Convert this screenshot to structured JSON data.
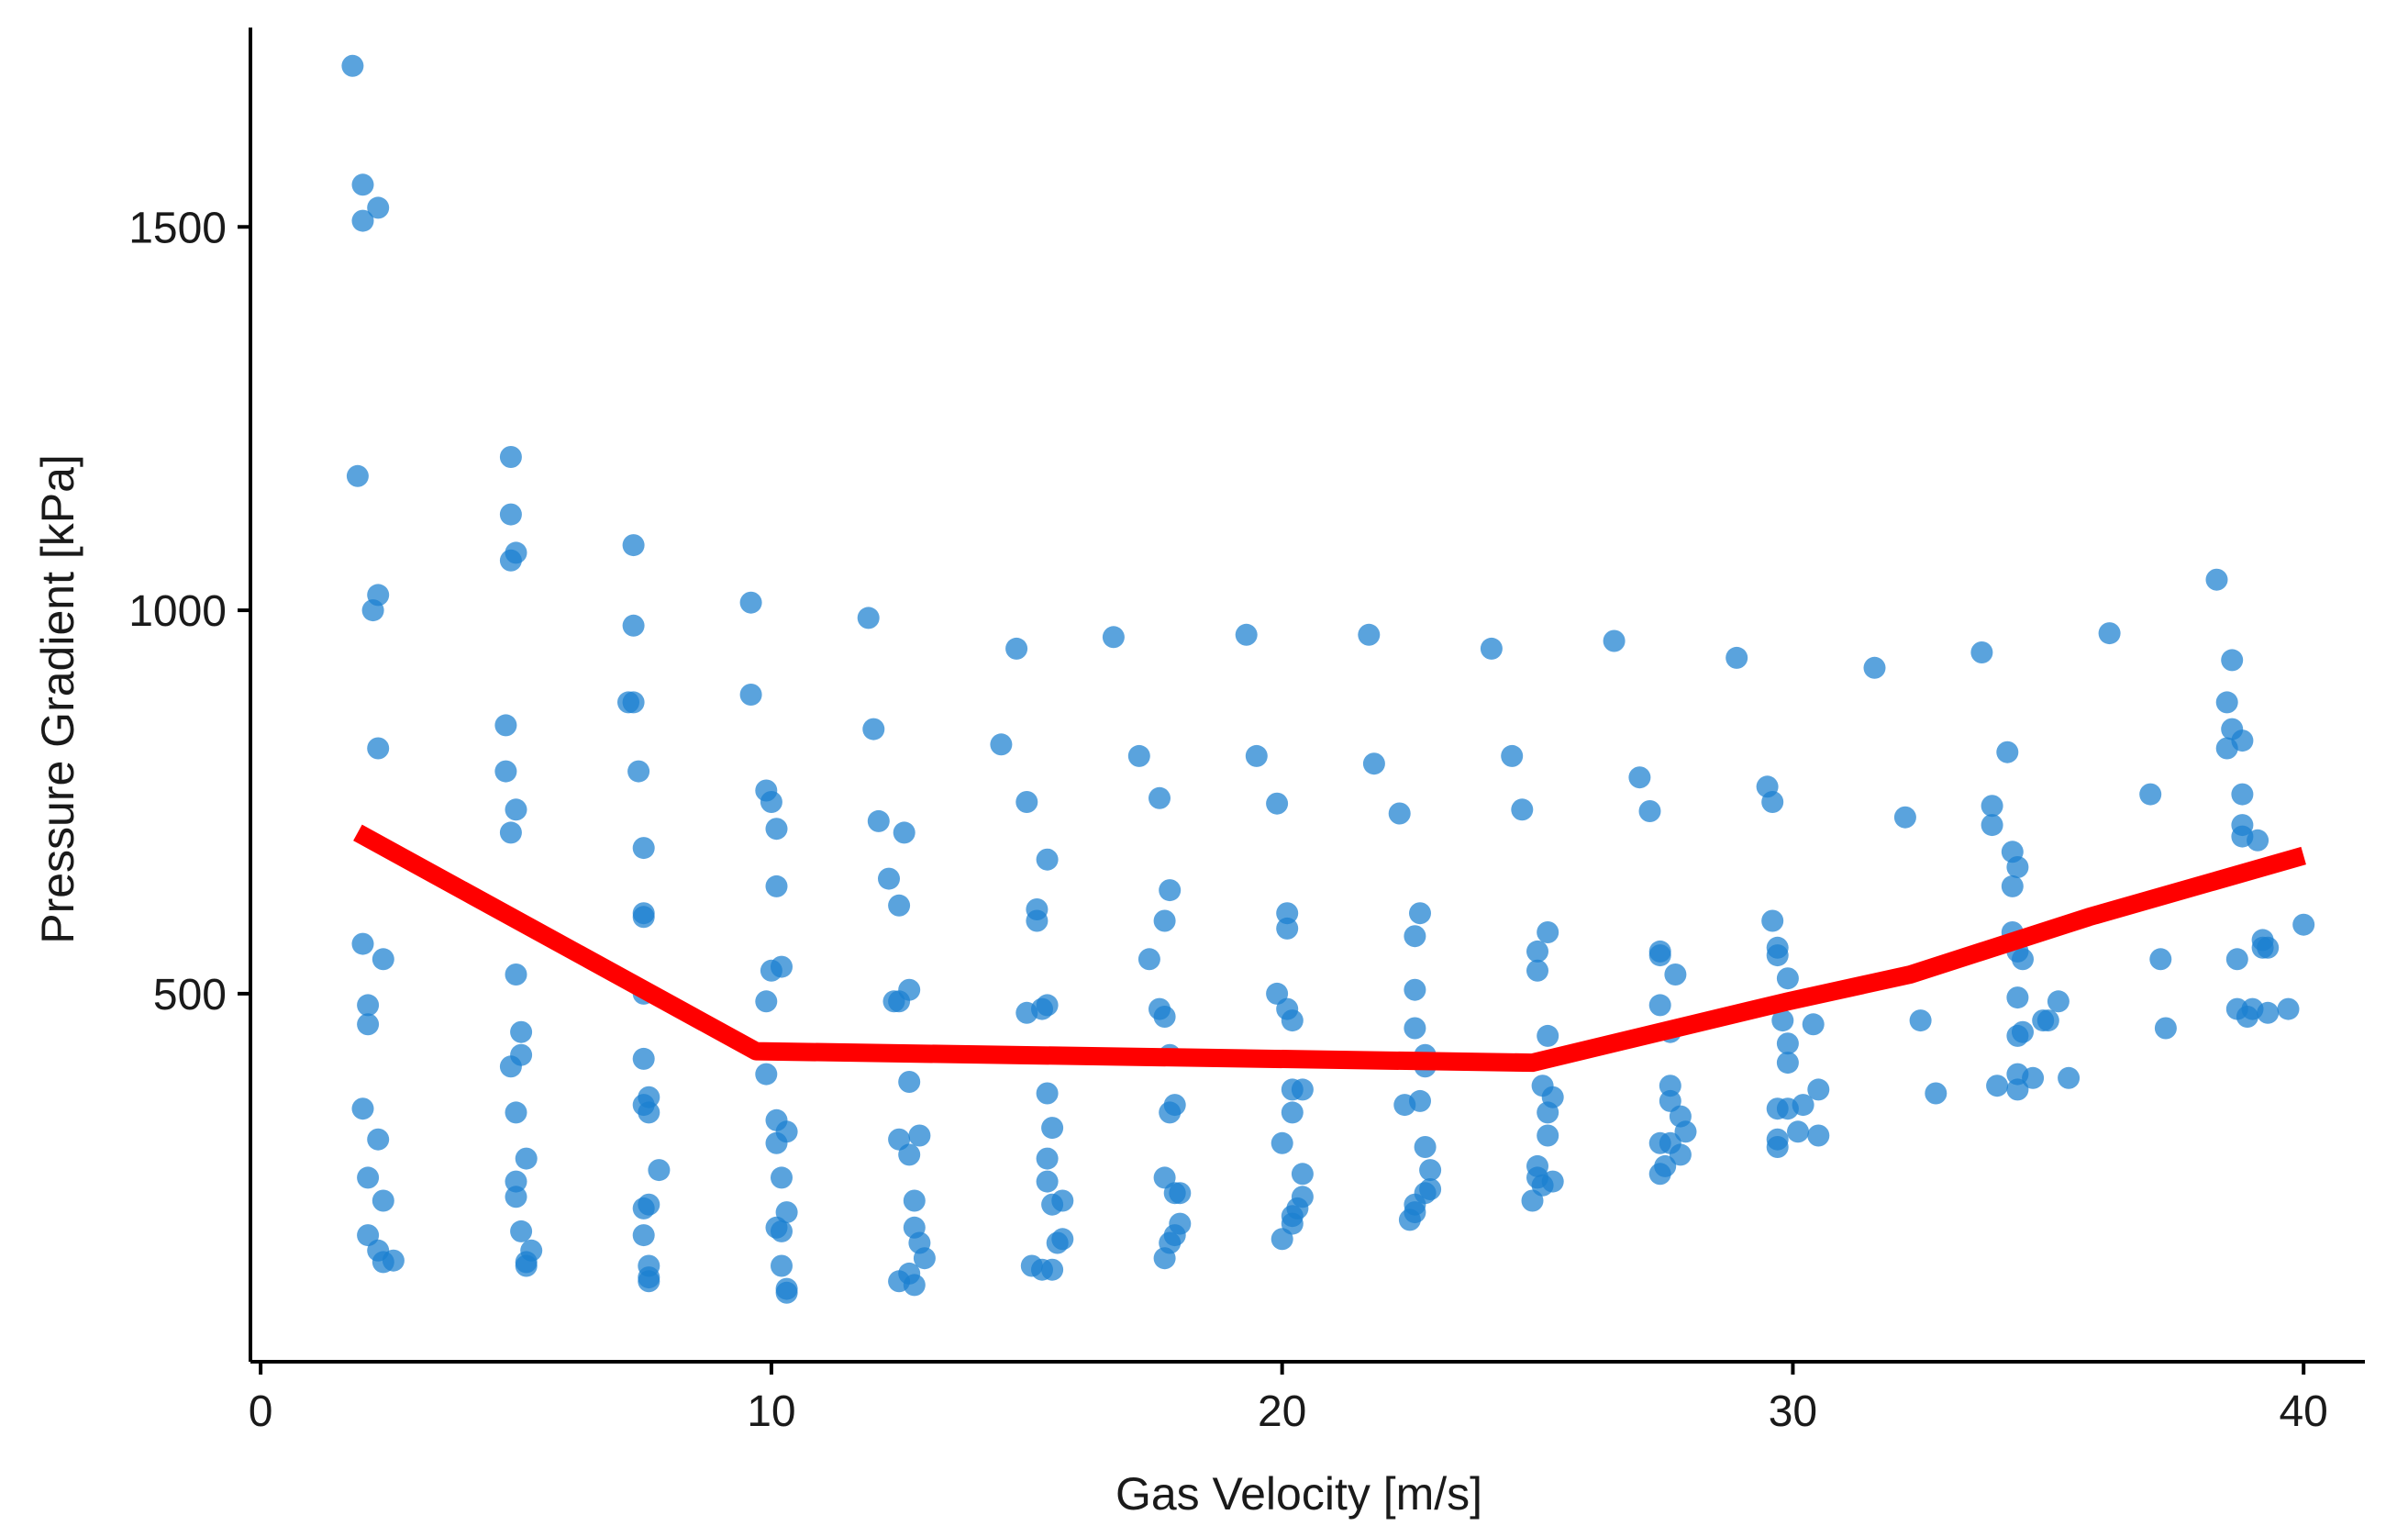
{
  "chart_data": {
    "type": "scatter",
    "title": "",
    "xlabel": "Gas Velocity [m/s]",
    "ylabel": "Pressure Gradient [kPa]",
    "xlim": [
      -0.2,
      41.2
    ],
    "ylim": [
      20,
      1760
    ],
    "xticks": [
      0,
      10,
      20,
      30,
      40
    ],
    "xtick_labels": [
      "0",
      "10",
      "20",
      "30",
      "40"
    ],
    "yticks": [
      500,
      1000,
      1500
    ],
    "ytick_labels": [
      "500",
      "1000",
      "1500"
    ],
    "grid": false,
    "legend": null,
    "colors": {
      "points": "#1a80d0",
      "trend": "#ff0000",
      "axis": "#000000"
    },
    "series": [
      {
        "name": "measurements",
        "kind": "scatter",
        "points": [
          [
            1.8,
            1710
          ],
          [
            2.0,
            1555
          ],
          [
            2.3,
            1525
          ],
          [
            2.0,
            1508
          ],
          [
            1.9,
            1175
          ],
          [
            2.3,
            1020
          ],
          [
            2.2,
            1000
          ],
          [
            2.3,
            820
          ],
          [
            2.0,
            565
          ],
          [
            2.4,
            545
          ],
          [
            2.1,
            485
          ],
          [
            2.1,
            460
          ],
          [
            2.0,
            350
          ],
          [
            2.3,
            310
          ],
          [
            2.1,
            260
          ],
          [
            2.4,
            230
          ],
          [
            2.1,
            185
          ],
          [
            2.3,
            165
          ],
          [
            2.4,
            150
          ],
          [
            2.6,
            152
          ],
          [
            4.9,
            1200
          ],
          [
            4.9,
            1125
          ],
          [
            5.0,
            1075
          ],
          [
            4.9,
            1065
          ],
          [
            4.8,
            850
          ],
          [
            4.8,
            790
          ],
          [
            5.0,
            740
          ],
          [
            4.9,
            710
          ],
          [
            5.0,
            525
          ],
          [
            5.1,
            450
          ],
          [
            5.1,
            420
          ],
          [
            4.9,
            405
          ],
          [
            5.0,
            345
          ],
          [
            5.2,
            285
          ],
          [
            5.0,
            255
          ],
          [
            5.0,
            235
          ],
          [
            5.1,
            190
          ],
          [
            5.3,
            165
          ],
          [
            5.2,
            145
          ],
          [
            5.2,
            150
          ],
          [
            7.3,
            1085
          ],
          [
            7.3,
            980
          ],
          [
            7.2,
            880
          ],
          [
            7.3,
            880
          ],
          [
            7.4,
            790
          ],
          [
            7.5,
            690
          ],
          [
            7.5,
            605
          ],
          [
            7.5,
            600
          ],
          [
            7.5,
            500
          ],
          [
            7.5,
            415
          ],
          [
            7.6,
            365
          ],
          [
            7.5,
            355
          ],
          [
            7.6,
            345
          ],
          [
            7.8,
            270
          ],
          [
            7.6,
            225
          ],
          [
            7.5,
            220
          ],
          [
            7.5,
            185
          ],
          [
            7.6,
            145
          ],
          [
            7.6,
            130
          ],
          [
            7.6,
            125
          ],
          [
            9.6,
            1010
          ],
          [
            9.6,
            890
          ],
          [
            9.9,
            765
          ],
          [
            10.0,
            750
          ],
          [
            10.1,
            715
          ],
          [
            10.1,
            640
          ],
          [
            10.0,
            530
          ],
          [
            10.2,
            535
          ],
          [
            9.9,
            490
          ],
          [
            9.9,
            395
          ],
          [
            10.1,
            335
          ],
          [
            10.3,
            320
          ],
          [
            10.1,
            305
          ],
          [
            10.2,
            260
          ],
          [
            10.3,
            215
          ],
          [
            10.1,
            195
          ],
          [
            10.2,
            190
          ],
          [
            10.2,
            145
          ],
          [
            10.3,
            115
          ],
          [
            10.3,
            110
          ],
          [
            11.9,
            990
          ],
          [
            12.0,
            845
          ],
          [
            12.1,
            725
          ],
          [
            12.6,
            710
          ],
          [
            12.3,
            650
          ],
          [
            12.5,
            615
          ],
          [
            12.7,
            505
          ],
          [
            12.4,
            490
          ],
          [
            12.5,
            490
          ],
          [
            12.7,
            385
          ],
          [
            12.5,
            310
          ],
          [
            12.9,
            315
          ],
          [
            12.7,
            290
          ],
          [
            12.8,
            230
          ],
          [
            12.8,
            195
          ],
          [
            12.9,
            175
          ],
          [
            12.7,
            135
          ],
          [
            12.5,
            125
          ],
          [
            12.8,
            120
          ],
          [
            13.0,
            155
          ],
          [
            14.5,
            825
          ],
          [
            14.8,
            950
          ],
          [
            15.0,
            750
          ],
          [
            15.2,
            610
          ],
          [
            15.2,
            595
          ],
          [
            15.4,
            675
          ],
          [
            15.4,
            485
          ],
          [
            15.3,
            480
          ],
          [
            15.0,
            475
          ],
          [
            15.4,
            370
          ],
          [
            15.5,
            325
          ],
          [
            15.4,
            285
          ],
          [
            15.4,
            255
          ],
          [
            15.5,
            225
          ],
          [
            15.7,
            230
          ],
          [
            15.6,
            175
          ],
          [
            15.7,
            180
          ],
          [
            15.1,
            145
          ],
          [
            15.3,
            140
          ],
          [
            15.5,
            140
          ],
          [
            16.7,
            965
          ],
          [
            17.2,
            810
          ],
          [
            17.6,
            755
          ],
          [
            17.8,
            635
          ],
          [
            17.7,
            595
          ],
          [
            17.4,
            545
          ],
          [
            17.6,
            480
          ],
          [
            17.7,
            470
          ],
          [
            17.8,
            420
          ],
          [
            17.9,
            355
          ],
          [
            17.8,
            345
          ],
          [
            17.7,
            260
          ],
          [
            17.9,
            240
          ],
          [
            18.0,
            240
          ],
          [
            18.0,
            200
          ],
          [
            17.9,
            185
          ],
          [
            17.8,
            175
          ],
          [
            17.7,
            155
          ],
          [
            19.3,
            968
          ],
          [
            19.5,
            810
          ],
          [
            19.9,
            748
          ],
          [
            20.1,
            605
          ],
          [
            20.1,
            585
          ],
          [
            19.9,
            500
          ],
          [
            20.1,
            480
          ],
          [
            20.2,
            465
          ],
          [
            20.2,
            375
          ],
          [
            20.4,
            375
          ],
          [
            20.2,
            345
          ],
          [
            20.0,
            305
          ],
          [
            20.4,
            265
          ],
          [
            20.4,
            235
          ],
          [
            20.3,
            220
          ],
          [
            20.2,
            210
          ],
          [
            20.2,
            200
          ],
          [
            20.0,
            180
          ],
          [
            21.7,
            968
          ],
          [
            21.8,
            800
          ],
          [
            22.3,
            735
          ],
          [
            22.7,
            605
          ],
          [
            22.6,
            575
          ],
          [
            22.6,
            505
          ],
          [
            22.6,
            455
          ],
          [
            22.8,
            420
          ],
          [
            22.8,
            405
          ],
          [
            22.4,
            355
          ],
          [
            22.7,
            360
          ],
          [
            22.8,
            300
          ],
          [
            22.9,
            270
          ],
          [
            22.9,
            245
          ],
          [
            22.8,
            240
          ],
          [
            22.6,
            225
          ],
          [
            22.6,
            215
          ],
          [
            22.5,
            205
          ],
          [
            24.1,
            950
          ],
          [
            24.5,
            810
          ],
          [
            24.7,
            740
          ],
          [
            25.0,
            555
          ],
          [
            25.0,
            530
          ],
          [
            25.2,
            580
          ],
          [
            25.2,
            445
          ],
          [
            25.1,
            380
          ],
          [
            25.3,
            365
          ],
          [
            25.2,
            345
          ],
          [
            25.2,
            315
          ],
          [
            25.0,
            275
          ],
          [
            25.0,
            260
          ],
          [
            25.3,
            255
          ],
          [
            25.1,
            250
          ],
          [
            24.9,
            230
          ],
          [
            26.5,
            960
          ],
          [
            27.0,
            782
          ],
          [
            27.2,
            738
          ],
          [
            27.4,
            555
          ],
          [
            27.4,
            550
          ],
          [
            27.4,
            485
          ],
          [
            27.7,
            525
          ],
          [
            27.6,
            450
          ],
          [
            27.6,
            380
          ],
          [
            27.6,
            360
          ],
          [
            27.8,
            340
          ],
          [
            27.9,
            320
          ],
          [
            27.4,
            305
          ],
          [
            27.6,
            305
          ],
          [
            27.5,
            275
          ],
          [
            27.8,
            290
          ],
          [
            27.4,
            265
          ],
          [
            28.9,
            938
          ],
          [
            29.5,
            770
          ],
          [
            29.6,
            750
          ],
          [
            29.6,
            595
          ],
          [
            29.7,
            560
          ],
          [
            29.7,
            550
          ],
          [
            29.9,
            520
          ],
          [
            29.8,
            465
          ],
          [
            29.9,
            435
          ],
          [
            29.9,
            410
          ],
          [
            30.2,
            355
          ],
          [
            30.5,
            375
          ],
          [
            30.1,
            320
          ],
          [
            30.5,
            315
          ],
          [
            29.7,
            350
          ],
          [
            29.9,
            350
          ],
          [
            29.7,
            310
          ],
          [
            29.7,
            300
          ],
          [
            30.4,
            460
          ],
          [
            31.6,
            925
          ],
          [
            32.2,
            730
          ],
          [
            32.5,
            465
          ],
          [
            32.8,
            370
          ],
          [
            33.7,
            945
          ],
          [
            34.2,
            815
          ],
          [
            33.9,
            745
          ],
          [
            33.9,
            720
          ],
          [
            34.3,
            685
          ],
          [
            34.4,
            665
          ],
          [
            34.3,
            640
          ],
          [
            34.3,
            580
          ],
          [
            34.5,
            545
          ],
          [
            34.4,
            555
          ],
          [
            34.4,
            495
          ],
          [
            34.4,
            445
          ],
          [
            34.5,
            450
          ],
          [
            34.4,
            395
          ],
          [
            34.4,
            375
          ],
          [
            34.0,
            380
          ],
          [
            34.7,
            390
          ],
          [
            34.9,
            465
          ],
          [
            35.2,
            490
          ],
          [
            35.0,
            465
          ],
          [
            35.4,
            390
          ],
          [
            36.2,
            970
          ],
          [
            37.0,
            760
          ],
          [
            37.2,
            545
          ],
          [
            37.3,
            455
          ],
          [
            38.3,
            1040
          ],
          [
            38.6,
            935
          ],
          [
            38.5,
            880
          ],
          [
            38.6,
            845
          ],
          [
            38.8,
            830
          ],
          [
            38.5,
            820
          ],
          [
            38.8,
            760
          ],
          [
            38.8,
            720
          ],
          [
            38.8,
            705
          ],
          [
            39.1,
            700
          ],
          [
            39.2,
            570
          ],
          [
            39.2,
            560
          ],
          [
            39.3,
            560
          ],
          [
            38.7,
            545
          ],
          [
            38.7,
            480
          ],
          [
            39.0,
            480
          ],
          [
            38.9,
            470
          ],
          [
            39.3,
            475
          ],
          [
            39.7,
            480
          ],
          [
            40.0,
            590
          ]
        ]
      },
      {
        "name": "trend",
        "kind": "line",
        "x": [
          1.9,
          9.7,
          24.9,
          29.9,
          32.3,
          35.8,
          40.0
        ],
        "y": [
          710,
          425,
          410,
          490,
          525,
          600,
          680
        ]
      }
    ]
  }
}
